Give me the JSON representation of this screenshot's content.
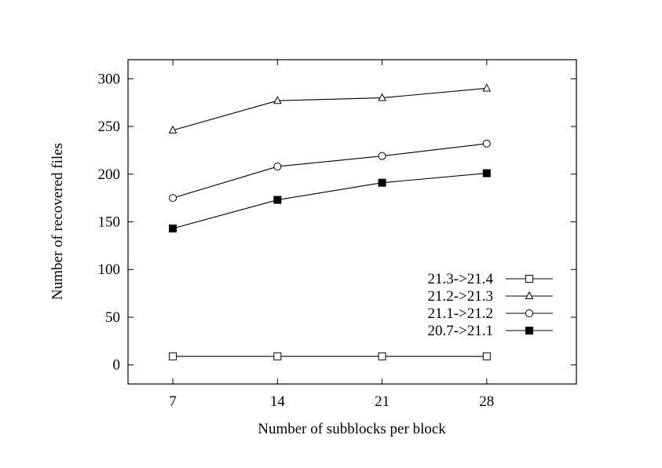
{
  "chart_data": {
    "type": "line",
    "title": "",
    "xlabel": "Number of subblocks per block",
    "ylabel": "Number of recovered files",
    "x": [
      7,
      14,
      21,
      28
    ],
    "xlim": [
      4,
      34
    ],
    "ylim": [
      -20,
      320
    ],
    "xticks": [
      7,
      14,
      21,
      28
    ],
    "yticks": [
      0,
      50,
      100,
      150,
      200,
      250,
      300
    ],
    "grid": false,
    "legend_position": "bottom-right",
    "series": [
      {
        "name": "21.3->21.4",
        "marker": "square-open",
        "values": [
          9,
          9,
          9,
          9
        ]
      },
      {
        "name": "21.2->21.3",
        "marker": "triangle-open",
        "values": [
          246,
          277,
          280,
          290
        ]
      },
      {
        "name": "21.1->21.2",
        "marker": "circle-open",
        "values": [
          175,
          208,
          219,
          232
        ]
      },
      {
        "name": "20.7->21.1",
        "marker": "square-filled",
        "values": [
          143,
          173,
          191,
          201
        ]
      }
    ]
  }
}
